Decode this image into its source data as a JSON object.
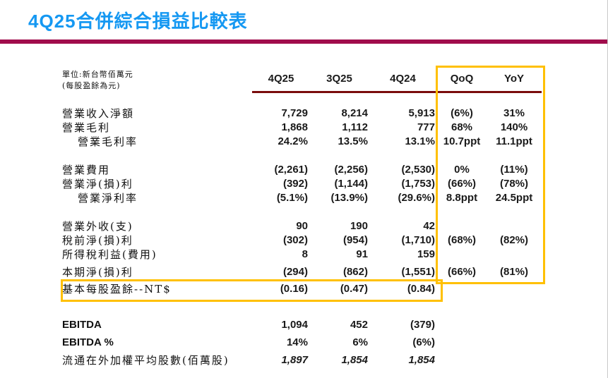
{
  "title": "4Q25合併綜合損益比較表",
  "unit_note": {
    "line1": "單位:新台幣佰萬元",
    "line2": "(每股盈餘為元)"
  },
  "columns": [
    "4Q25",
    "3Q25",
    "4Q24",
    "QoQ",
    "YoY"
  ],
  "rows": [
    {
      "label": "營業收入淨額",
      "indent": false,
      "gap": "large",
      "cells": [
        "7,729",
        "8,214",
        "5,913",
        "(6%)",
        "31%"
      ]
    },
    {
      "label": "營業毛利",
      "indent": false,
      "gap": "none",
      "cells": [
        "1,868",
        "1,112",
        "777",
        "68%",
        "140%"
      ]
    },
    {
      "label": "營業毛利率",
      "indent": true,
      "gap": "none",
      "cells": [
        "24.2%",
        "13.5%",
        "13.1%",
        "10.7ppt",
        "11.1ppt"
      ]
    },
    {
      "label": "營業費用",
      "indent": false,
      "gap": "large",
      "cells": [
        "(2,261)",
        "(2,256)",
        "(2,530)",
        "0%",
        "(11%)"
      ]
    },
    {
      "label": "營業淨(損)利",
      "indent": false,
      "gap": "none",
      "cells": [
        "(392)",
        "(1,144)",
        "(1,753)",
        "(66%)",
        "(78%)"
      ]
    },
    {
      "label": "營業淨利率",
      "indent": true,
      "gap": "none",
      "cells": [
        "(5.1%)",
        "(13.9%)",
        "(29.6%)",
        "8.8ppt",
        "24.5ppt"
      ]
    },
    {
      "label": "營業外收(支)",
      "indent": false,
      "gap": "large",
      "cells": [
        "90",
        "190",
        "42",
        "",
        ""
      ]
    },
    {
      "label": "稅前淨(損)利",
      "indent": false,
      "gap": "none",
      "cells": [
        "(302)",
        "(954)",
        "(1,710)",
        "(68%)",
        "(82%)"
      ]
    },
    {
      "label": "所得稅利益(費用)",
      "indent": false,
      "gap": "none",
      "cells": [
        "8",
        "91",
        "159",
        "",
        ""
      ]
    },
    {
      "label": "本期淨(損)利",
      "indent": false,
      "gap": "small",
      "cells": [
        "(294)",
        "(862)",
        "(1,551)",
        "(66%)",
        "(81%)"
      ]
    },
    {
      "label": "基本每股盈餘--NT$",
      "indent": false,
      "gap": "eps",
      "cells": [
        "(0.16)",
        "(0.47)",
        "(0.84)",
        "",
        ""
      ]
    },
    {
      "label": "EBITDA",
      "indent": false,
      "gap": "ebitda",
      "sans_label": true,
      "tall": true,
      "cells": [
        "1,094",
        "452",
        "(379)",
        "",
        ""
      ]
    },
    {
      "label": "EBITDA %",
      "indent": false,
      "gap": "none",
      "sans_label": true,
      "tall": true,
      "cells": [
        "14%",
        "6%",
        "(6%)",
        "",
        ""
      ]
    },
    {
      "label": "流通在外加權平均股數(佰萬股)",
      "indent": false,
      "gap": "none",
      "tall": true,
      "italic_nums": true,
      "cells": [
        "1,897",
        "1,854",
        "1,854",
        "",
        ""
      ]
    }
  ],
  "colors": {
    "title_blue": "#1598F2",
    "title_rule_crimson": "#A00D4C",
    "header_rule_maroon": "#7A0C0C",
    "highlight_gold": "#FFC000"
  }
}
